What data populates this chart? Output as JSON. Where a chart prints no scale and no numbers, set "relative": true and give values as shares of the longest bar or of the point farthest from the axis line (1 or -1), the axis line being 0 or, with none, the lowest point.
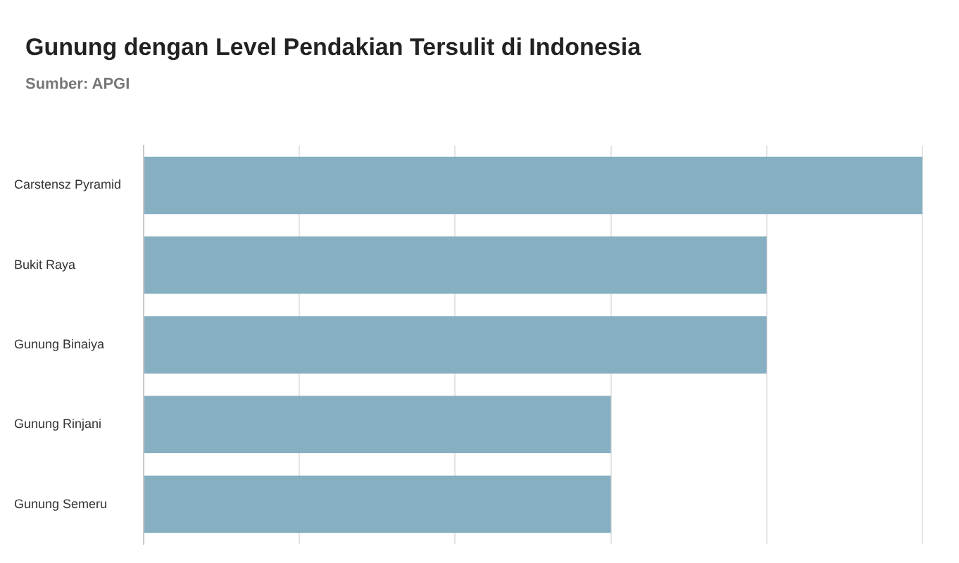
{
  "chart_data": {
    "type": "bar",
    "orientation": "horizontal",
    "title": "Gunung dengan Level Pendakian Tersulit di Indonesia",
    "subtitle": "Sumber: APGI",
    "categories": [
      "Carstensz Pyramid",
      "Bukit Raya",
      "Gunung Binaiya",
      "Gunung Rinjani",
      "Gunung Semeru"
    ],
    "values": [
      1,
      0.8,
      0.8,
      0.6,
      0.6
    ],
    "color": "#86afc2",
    "relative": true,
    "grid": "x"
  }
}
